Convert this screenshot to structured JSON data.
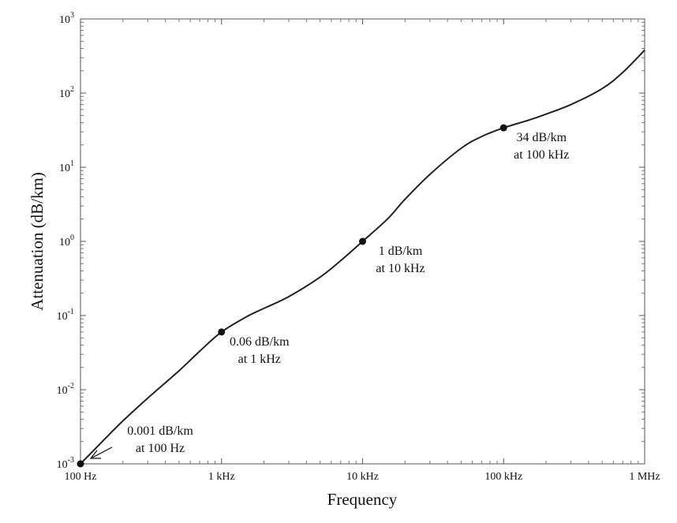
{
  "chart_data": {
    "type": "line",
    "title": "",
    "xlabel": "Frequency",
    "ylabel": "Attenuation (dB/km)",
    "x_scale": "log",
    "y_scale": "log",
    "xlim": [
      100,
      1000000
    ],
    "ylim": [
      0.001,
      1000
    ],
    "x_ticks": [
      {
        "value": 100,
        "label": "100 Hz"
      },
      {
        "value": 1000,
        "label": "1 kHz"
      },
      {
        "value": 10000,
        "label": "10 kHz"
      },
      {
        "value": 100000,
        "label": "100 kHz"
      },
      {
        "value": 1000000,
        "label": "1 MHz"
      }
    ],
    "y_ticks": [
      {
        "value": 0.001,
        "base": "10",
        "exp": "-3"
      },
      {
        "value": 0.01,
        "base": "10",
        "exp": "-2"
      },
      {
        "value": 0.1,
        "base": "10",
        "exp": "-1"
      },
      {
        "value": 1,
        "base": "10",
        "exp": "0"
      },
      {
        "value": 10,
        "base": "10",
        "exp": "1"
      },
      {
        "value": 100,
        "base": "10",
        "exp": "2"
      },
      {
        "value": 1000,
        "base": "10",
        "exp": "3"
      }
    ],
    "grid": false,
    "line_color": "#222222",
    "series": [
      {
        "x": [
          100,
          150,
          200,
          300,
          500,
          700,
          1000,
          1500,
          2000,
          3000,
          5000,
          7000,
          10000,
          15000,
          20000,
          30000,
          50000,
          70000,
          100000,
          150000,
          200000,
          300000,
          500000,
          700000,
          1000000
        ],
        "values": [
          0.001,
          0.0022,
          0.0038,
          0.0077,
          0.018,
          0.033,
          0.06,
          0.096,
          0.125,
          0.18,
          0.33,
          0.55,
          1.0,
          2.0,
          3.7,
          8.0,
          18,
          26,
          34,
          43,
          52,
          70,
          115,
          190,
          380
        ]
      }
    ],
    "marked_points": [
      {
        "x": 100,
        "y": 0.001,
        "label_lines": [
          "0.001 dB/km",
          "at 100 Hz"
        ],
        "arrow": true
      },
      {
        "x": 1000,
        "y": 0.06,
        "label_lines": [
          "0.06 dB/km",
          "at 1 kHz"
        ],
        "arrow": false
      },
      {
        "x": 10000,
        "y": 1,
        "label_lines": [
          "1 dB/km",
          "at 10 kHz"
        ],
        "arrow": false
      },
      {
        "x": 100000,
        "y": 34,
        "label_lines": [
          "34 dB/km",
          "at 100 kHz"
        ],
        "arrow": false
      }
    ]
  }
}
